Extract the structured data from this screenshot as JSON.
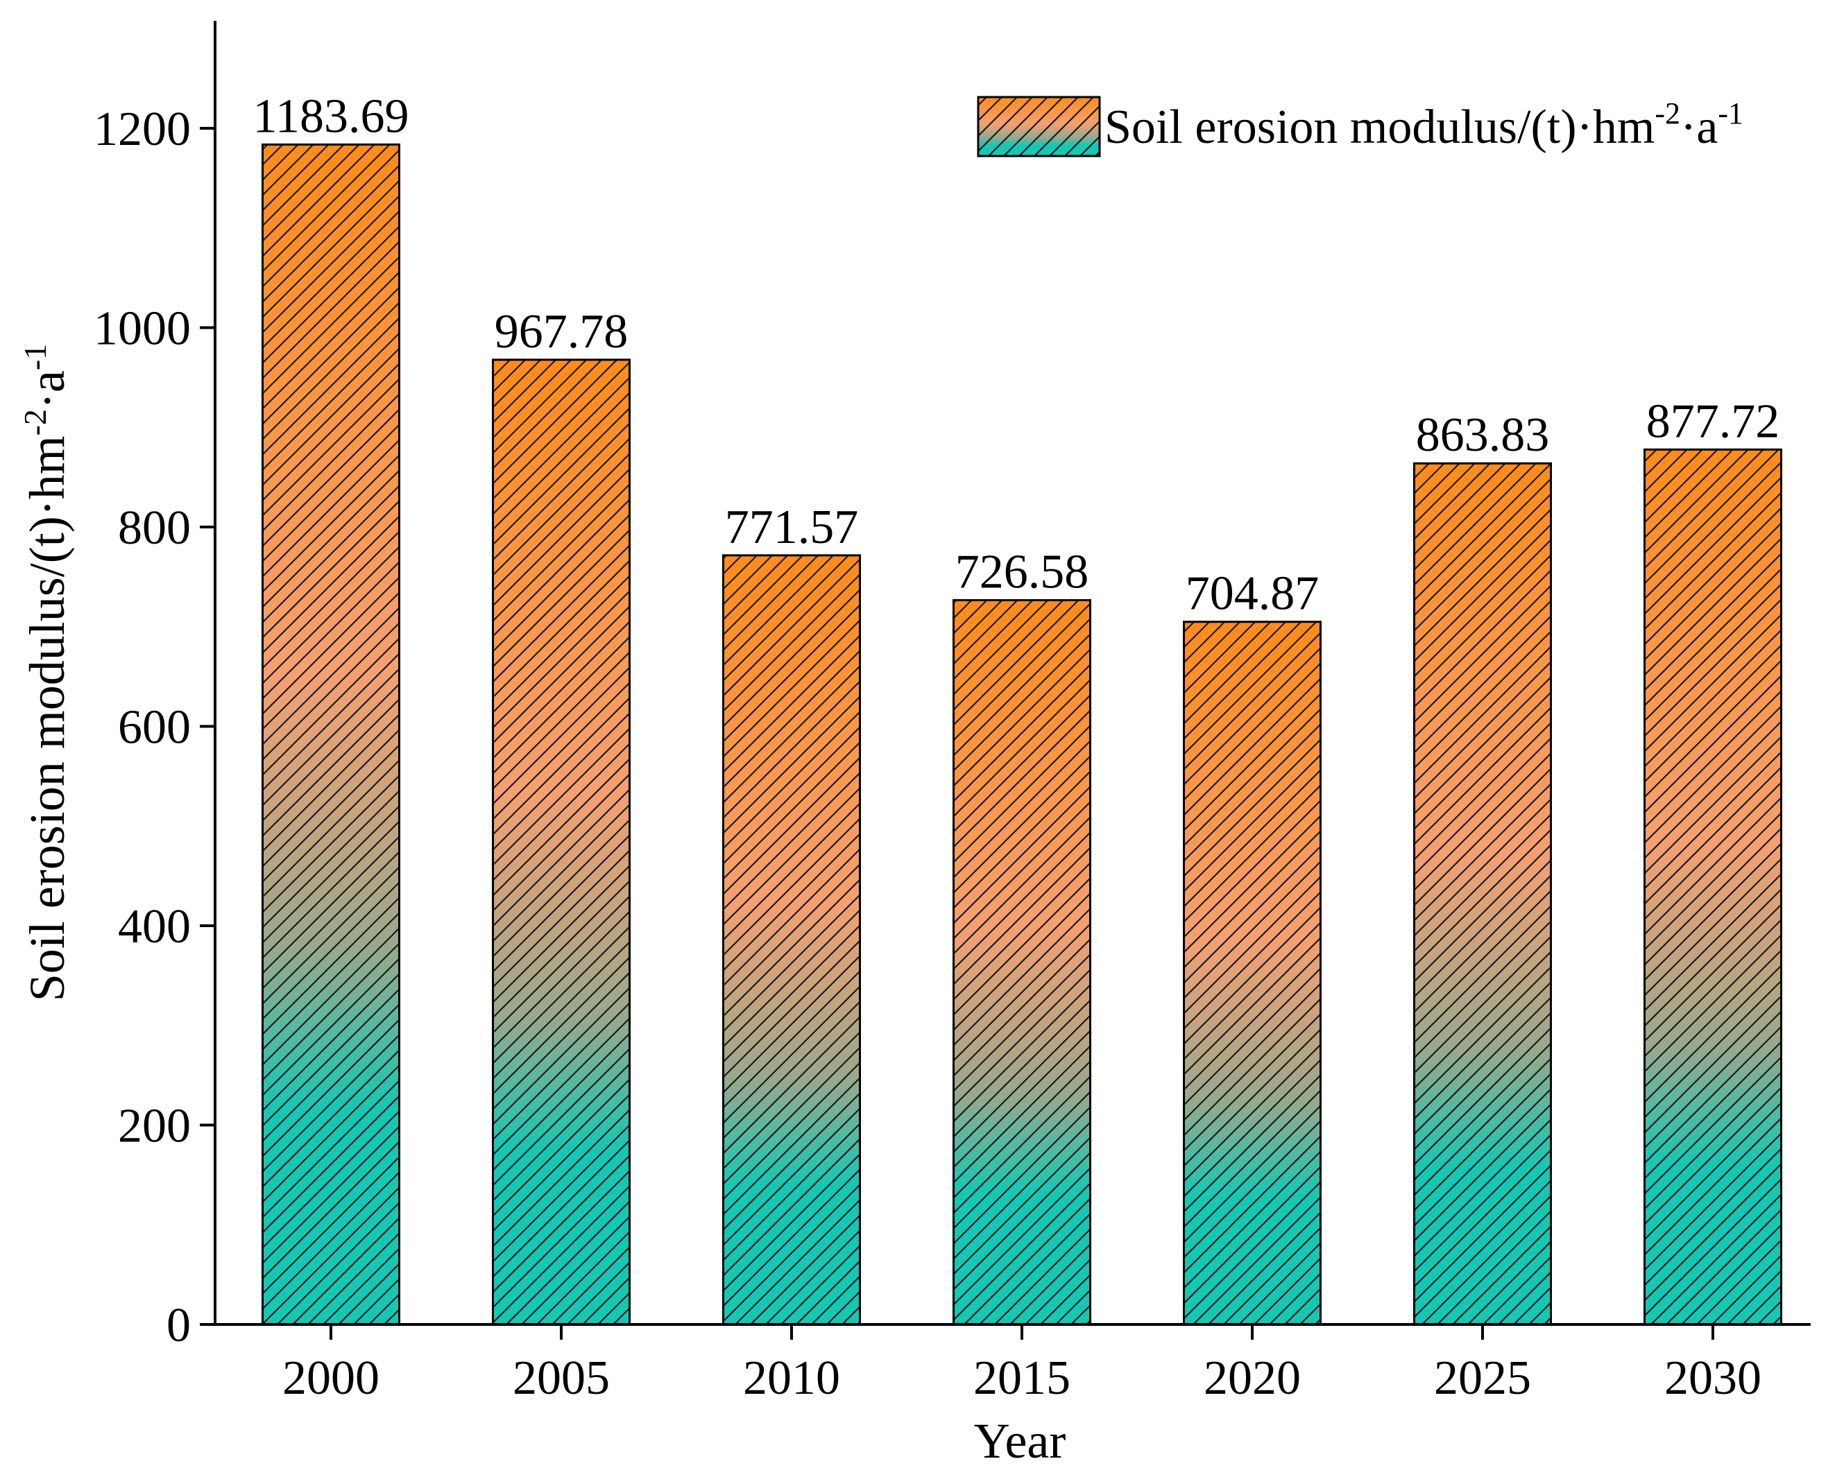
{
  "chart_data": {
    "type": "bar",
    "title": "",
    "xlabel": "Year",
    "ylabel": {
      "main": "Soil erosion modulus/(t)·hm",
      "exp1": "-2",
      "mid": "·a",
      "exp2": "-1"
    },
    "categories": [
      "2000",
      "2005",
      "2010",
      "2015",
      "2020",
      "2025",
      "2030"
    ],
    "series": [
      {
        "name": "Soil erosion modulus/(t)·hm-2·a-1",
        "values": [
          1183.69,
          967.78,
          771.57,
          726.58,
          704.87,
          863.83,
          877.72
        ],
        "labels": [
          "1183.69",
          "967.78",
          "771.57",
          "726.58",
          "704.87",
          "863.83",
          "877.72"
        ]
      }
    ],
    "ylim": [
      0,
      1300
    ],
    "yticks": [
      0,
      200,
      400,
      600,
      800,
      1000,
      1200
    ],
    "grid": false,
    "legend": {
      "position": "top-right",
      "main": "Soil erosion modulus/(t)·hm",
      "exp1": "-2",
      "mid": "·a",
      "exp2": "-1"
    },
    "colors": {
      "top": "#ff8c1a",
      "mid": "#f5a070",
      "low": "#9aa88c",
      "bottom": "#14c8b4",
      "hatch": "#1a1a1a"
    }
  }
}
